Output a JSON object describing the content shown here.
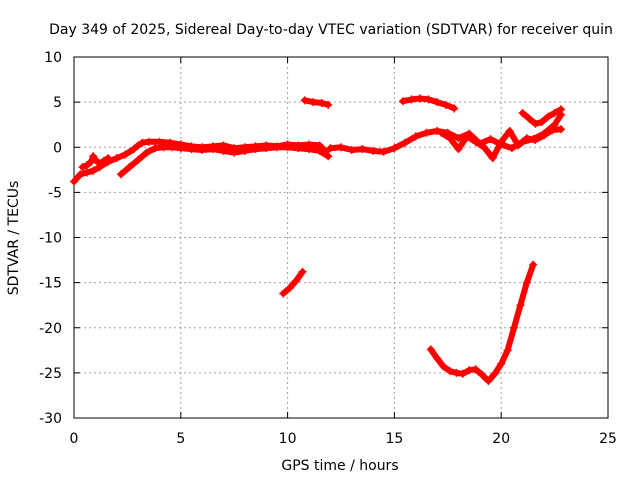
{
  "chart_data": {
    "type": "scatter",
    "title": "Day 349 of 2025, Sidereal Day-to-day VTEC variation (SDTVAR) for receiver quin",
    "xlabel": "GPS time / hours",
    "ylabel": "SDTVAR / TECUs",
    "xlim": [
      0,
      25
    ],
    "ylim": [
      -30,
      10
    ],
    "x_ticks": [
      0,
      5,
      10,
      15,
      20,
      25
    ],
    "y_ticks": [
      -30,
      -25,
      -20,
      -15,
      -10,
      -5,
      0,
      5,
      10
    ],
    "grid": true,
    "marker": "plus",
    "color": "#ff0000",
    "series": [
      {
        "name": "arc-1",
        "x": [
          0.0,
          0.3,
          0.6,
          0.9,
          1.2,
          1.6,
          2.0,
          2.4,
          2.8,
          3.0,
          3.2,
          3.5,
          4.0,
          4.5,
          5.0,
          5.5,
          6.0,
          6.5,
          7.0,
          7.5,
          8.0,
          8.5,
          9.0,
          9.5,
          10.0,
          10.5,
          11.0,
          11.5,
          11.8
        ],
        "y": [
          -3.8,
          -3.0,
          -2.8,
          -2.6,
          -2.2,
          -1.6,
          -1.2,
          -0.8,
          -0.2,
          0.2,
          0.5,
          0.6,
          0.6,
          0.5,
          0.3,
          0.1,
          0.0,
          0.1,
          0.2,
          -0.1,
          0.0,
          0.1,
          0.2,
          0.1,
          0.3,
          0.2,
          0.3,
          0.2,
          -0.5
        ]
      },
      {
        "name": "arc-2",
        "x": [
          0.4,
          0.6,
          0.8,
          0.9,
          1.0,
          1.2,
          1.4,
          1.6
        ],
        "y": [
          -2.2,
          -2.0,
          -1.6,
          -1.0,
          -1.4,
          -1.8,
          -1.5,
          -1.2
        ]
      },
      {
        "name": "arc-3",
        "x": [
          2.2,
          2.6,
          3.0,
          3.4,
          3.8,
          4.2,
          4.6,
          5.0,
          5.5,
          6.0,
          6.5,
          7.0,
          7.5,
          8.0,
          8.5,
          9.0,
          9.5,
          10.0,
          10.5,
          11.0,
          11.5,
          11.9
        ],
        "y": [
          -3.0,
          -2.2,
          -1.4,
          -0.6,
          -0.1,
          0.0,
          0.0,
          -0.1,
          -0.2,
          -0.3,
          -0.2,
          -0.4,
          -0.6,
          -0.4,
          -0.2,
          -0.1,
          0.0,
          0.0,
          -0.1,
          -0.2,
          -0.4,
          -1.0
        ]
      },
      {
        "name": "arc-4",
        "x": [
          10.8,
          11.2,
          11.6,
          11.9
        ],
        "y": [
          5.2,
          5.0,
          4.9,
          4.7
        ]
      },
      {
        "name": "arc-5",
        "x": [
          9.8,
          10.1,
          10.4,
          10.7
        ],
        "y": [
          -16.2,
          -15.6,
          -14.8,
          -13.8
        ]
      },
      {
        "name": "arc-6",
        "x": [
          12.0,
          12.5,
          13.0,
          13.5,
          14.0,
          14.5,
          15.0,
          15.5,
          16.0,
          16.5,
          17.0,
          17.5,
          18.0,
          18.5,
          19.0,
          19.5,
          20.0,
          20.5,
          21.0,
          21.5,
          22.0,
          22.5,
          22.8
        ],
        "y": [
          -0.1,
          0.0,
          -0.3,
          -0.2,
          -0.4,
          -0.5,
          -0.1,
          0.5,
          1.2,
          1.6,
          1.8,
          1.6,
          1.0,
          1.5,
          0.4,
          0.9,
          0.3,
          -0.1,
          0.6,
          0.9,
          1.5,
          2.5,
          3.6
        ]
      },
      {
        "name": "arc-7",
        "x": [
          17.2,
          17.6,
          18.0,
          18.4,
          18.8,
          19.2,
          19.6,
          20.0,
          20.4,
          20.8,
          21.2,
          21.6,
          22.0,
          22.4,
          22.8
        ],
        "y": [
          1.6,
          1.0,
          -0.2,
          1.2,
          0.6,
          0.0,
          -1.2,
          0.6,
          1.8,
          0.2,
          1.0,
          0.8,
          1.3,
          1.9,
          2.0
        ]
      },
      {
        "name": "arc-8",
        "x": [
          15.4,
          15.8,
          16.2,
          16.6,
          17.0,
          17.4,
          17.8
        ],
        "y": [
          5.1,
          5.3,
          5.4,
          5.3,
          5.0,
          4.7,
          4.3
        ]
      },
      {
        "name": "arc-9",
        "x": [
          21.0,
          21.3,
          21.6,
          21.9,
          22.2,
          22.5,
          22.8
        ],
        "y": [
          3.8,
          3.2,
          2.6,
          2.8,
          3.4,
          3.8,
          4.2
        ]
      },
      {
        "name": "arc-10",
        "x": [
          16.7,
          17.0,
          17.3,
          17.6,
          17.9,
          18.2,
          18.5,
          18.8,
          19.1,
          19.4,
          19.7,
          20.0,
          20.3,
          20.6,
          20.9,
          21.2,
          21.5
        ],
        "y": [
          -22.4,
          -23.4,
          -24.3,
          -24.8,
          -25.0,
          -25.1,
          -24.7,
          -24.6,
          -25.2,
          -25.9,
          -25.1,
          -24.0,
          -22.5,
          -20.0,
          -17.5,
          -15.0,
          -13.0
        ]
      }
    ]
  }
}
